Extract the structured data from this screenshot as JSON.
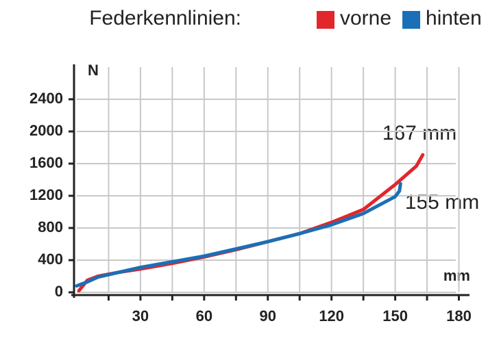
{
  "chart_data": {
    "type": "line",
    "legend_title": "Federkennlinien:",
    "y_unit": "N",
    "x_unit": "mm",
    "annotations": [
      "167 mm",
      "155 mm"
    ],
    "xlim": [
      0,
      185
    ],
    "ylim": [
      0,
      2800
    ],
    "xticks": [
      30,
      60,
      90,
      120,
      150,
      180
    ],
    "xminor_ticks": [
      15,
      45,
      75,
      105,
      135,
      165
    ],
    "yticks": [
      0,
      400,
      800,
      1200,
      1600,
      2000,
      2400
    ],
    "grid": true,
    "legend": "top-right",
    "series": [
      {
        "name": "vorne",
        "color": "#e2262c",
        "x": [
          1,
          5,
          10,
          20,
          30,
          45,
          60,
          75,
          90,
          105,
          120,
          135,
          150,
          160,
          163
        ],
        "values": [
          20,
          150,
          200,
          250,
          290,
          360,
          440,
          530,
          630,
          730,
          870,
          1030,
          1340,
          1570,
          1710
        ]
      },
      {
        "name": "hinten",
        "color": "#1b6fb6",
        "x": [
          0,
          5,
          10,
          20,
          30,
          45,
          60,
          75,
          90,
          105,
          120,
          135,
          150,
          152,
          152.5
        ],
        "values": [
          80,
          130,
          190,
          250,
          310,
          380,
          450,
          540,
          630,
          730,
          840,
          980,
          1190,
          1260,
          1350
        ]
      }
    ]
  }
}
